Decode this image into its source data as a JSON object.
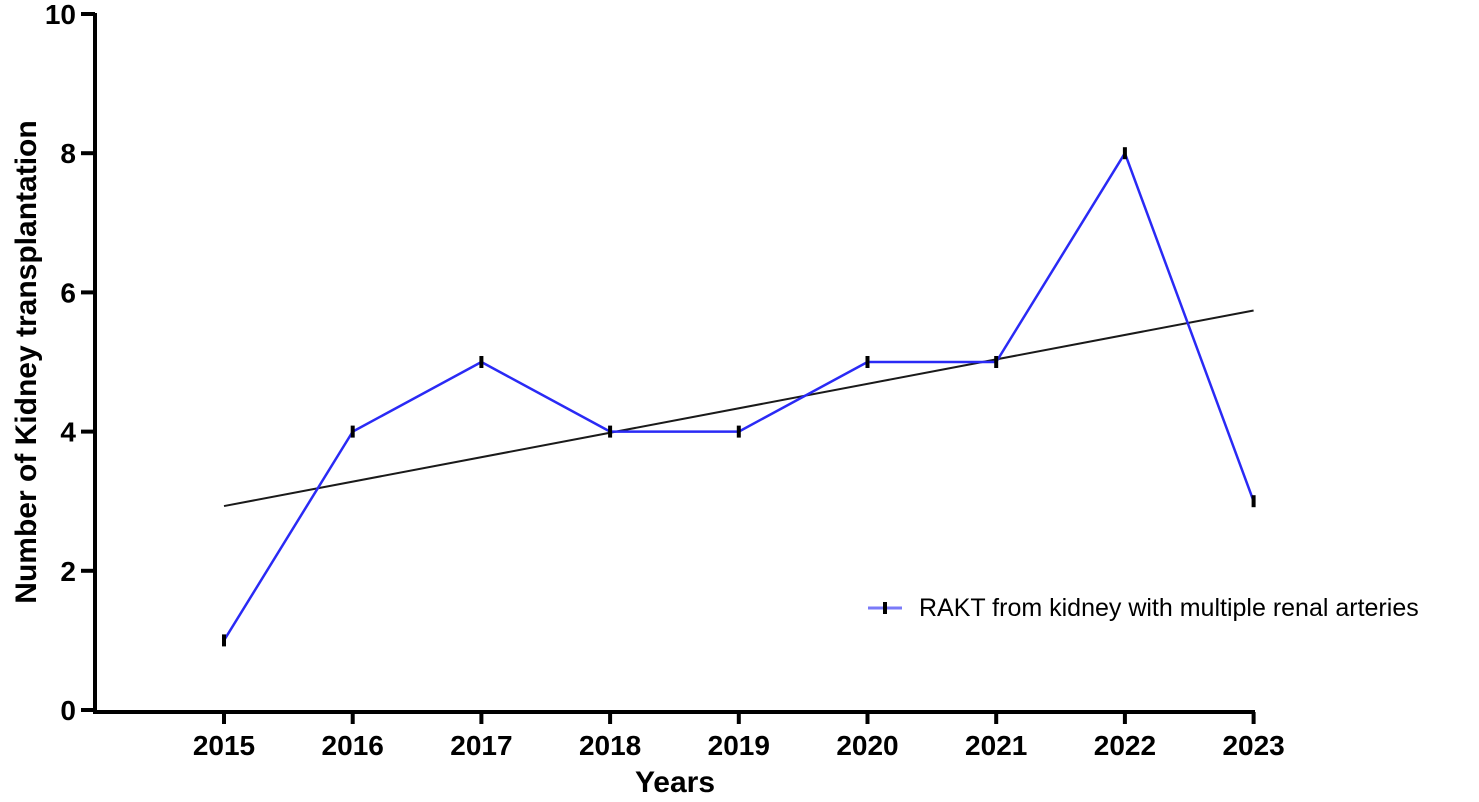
{
  "figure": {
    "background": "#ffffff"
  },
  "chart_data": {
    "type": "line",
    "title": "",
    "xlabel": "Years",
    "ylabel": "Number of Kidney transplantation",
    "categories": [
      2015,
      2016,
      2017,
      2018,
      2019,
      2020,
      2021,
      2022,
      2023
    ],
    "series": [
      {
        "name": "RAKT from kidney with multiple renal arteries",
        "values": [
          1,
          4,
          5,
          4,
          4,
          5,
          5,
          8,
          3
        ],
        "color": "#2a2af5",
        "marker": "vertical-tick",
        "marker_color": "#000000"
      }
    ],
    "trend_line": {
      "start": {
        "x": 2015,
        "y": 2.93
      },
      "end": {
        "x": 2023,
        "y": 5.74
      },
      "color": "#1a1a1a"
    },
    "y_ticks": [
      0,
      2,
      4,
      6,
      8,
      10
    ],
    "ylim": [
      0,
      10
    ],
    "grid": false,
    "legend": {
      "position": "inside-lower-right",
      "label": "RAKT from kidney with multiple renal arteries"
    }
  },
  "colors": {
    "series": "#2a2af5",
    "trend": "#1a1a1a",
    "axis": "#000000",
    "text": "#000000"
  }
}
